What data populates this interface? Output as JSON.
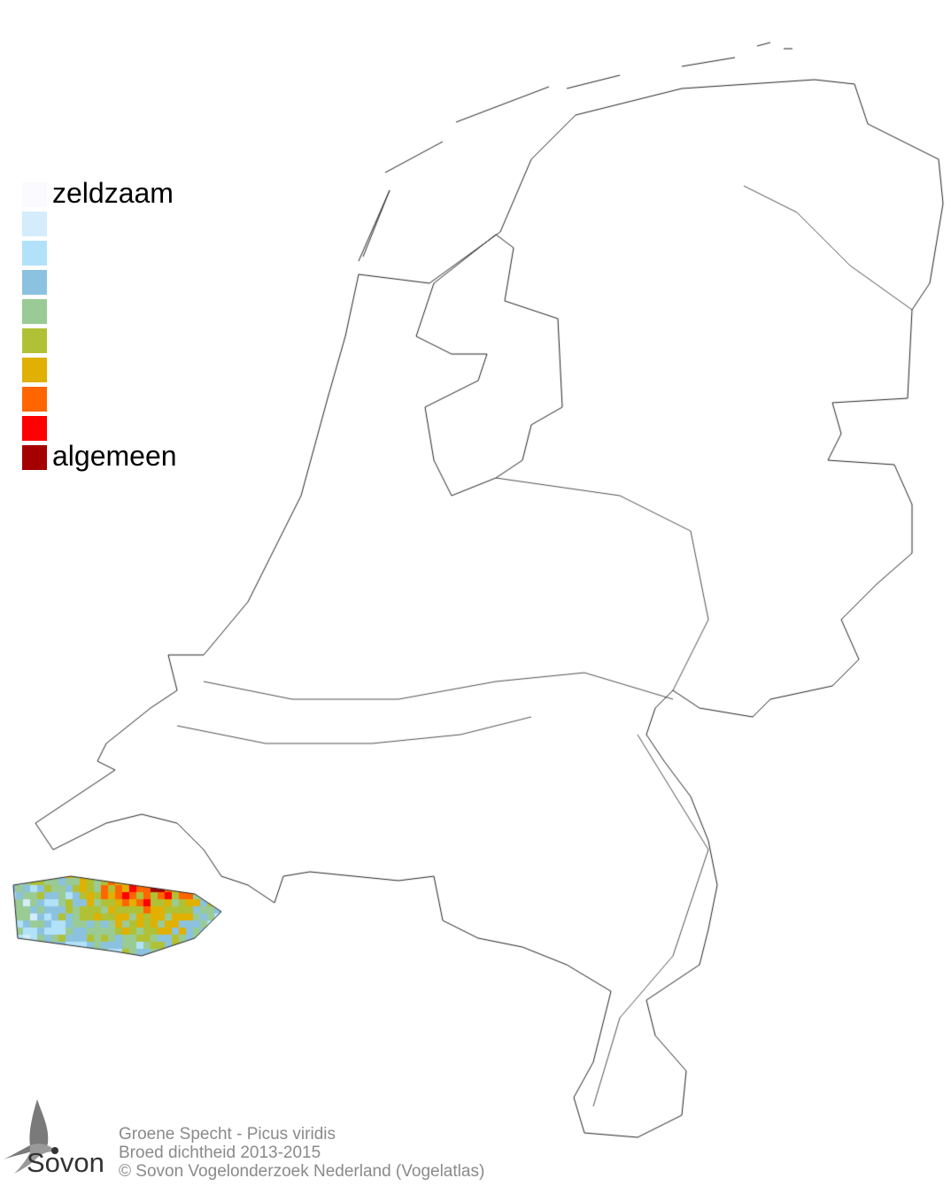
{
  "legend": {
    "levels": [
      {
        "color": "#fbfbff",
        "label": "zeldzaam"
      },
      {
        "color": "#d4ecfb",
        "label": ""
      },
      {
        "color": "#b2e2fa",
        "label": ""
      },
      {
        "color": "#8bc2df",
        "label": ""
      },
      {
        "color": "#9acb95",
        "label": ""
      },
      {
        "color": "#b1c135",
        "label": ""
      },
      {
        "color": "#e0b003",
        "label": ""
      },
      {
        "color": "#ff6600",
        "label": ""
      },
      {
        "color": "#ff0000",
        "label": ""
      },
      {
        "color": "#a50000",
        "label": "algemeen"
      }
    ]
  },
  "footer": {
    "species": "Groene Specht - Picus viridis",
    "subtitle": "Broed dichtheid 2013-2015",
    "copyright": "© Sovon Vogelonderzoek Nederland (Vogelatlas)"
  },
  "logo": {
    "text": "Sovon",
    "icon": "swallow-icon"
  }
}
